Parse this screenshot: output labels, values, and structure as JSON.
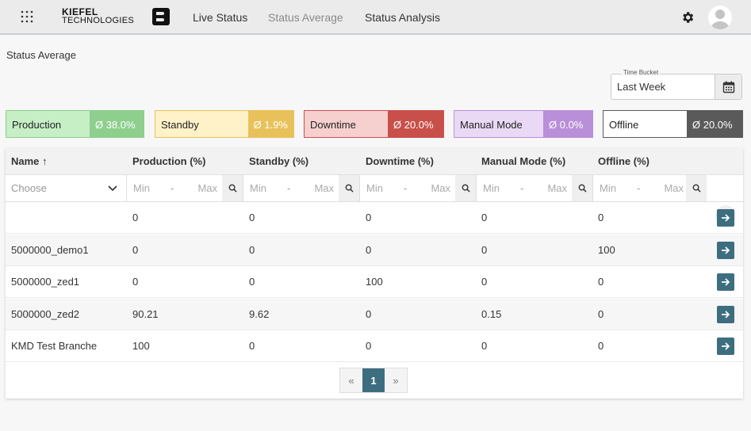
{
  "brand": {
    "line1": "KIEFEL",
    "line2": "TECHNOLOGIES"
  },
  "nav": {
    "live": "Live Status",
    "average": "Status Average",
    "analysis": "Status Analysis"
  },
  "page_title": "Status Average",
  "time_bucket": {
    "label": "Time Bucket",
    "value": "Last Week"
  },
  "cards": [
    {
      "label": "Production",
      "value": "Ø 38.0%",
      "bg": "#c6efc6",
      "border": "#8ecf8e",
      "val_bg": "#8ecf8e"
    },
    {
      "label": "Standby",
      "value": "Ø 1.9%",
      "bg": "#fff2c9",
      "border": "#e8c15a",
      "val_bg": "#e8c15a"
    },
    {
      "label": "Downtime",
      "value": "Ø 20.0%",
      "bg": "#f6d0cf",
      "border": "#c9504a",
      "val_bg": "#c9504a"
    },
    {
      "label": "Manual Mode",
      "value": "Ø 0.0%",
      "bg": "#ead9f5",
      "border": "#b98fd9",
      "val_bg": "#b98fd9"
    },
    {
      "label": "Offline",
      "value": "Ø 20.0%",
      "bg": "#ffffff",
      "border": "#5a5a5a",
      "val_bg": "#5a5a5a"
    }
  ],
  "table": {
    "headers": [
      "Name ↑",
      "Production (%)",
      "Standby (%)",
      "Downtime (%)",
      "Manual Mode (%)",
      "Offline (%)"
    ],
    "filter": {
      "choose": "Choose",
      "min": "Min",
      "dash": "-",
      "max": "Max"
    },
    "rows": [
      {
        "name": "",
        "production": "0",
        "standby": "0",
        "downtime": "0",
        "manual": "0",
        "offline": "0"
      },
      {
        "name": "5000000_demo1",
        "production": "0",
        "standby": "0",
        "downtime": "0",
        "manual": "0",
        "offline": "100"
      },
      {
        "name": "5000000_zed1",
        "production": "0",
        "standby": "0",
        "downtime": "100",
        "manual": "0",
        "offline": "0"
      },
      {
        "name": "5000000_zed2",
        "production": "90.21",
        "standby": "9.62",
        "downtime": "0",
        "manual": "0.15",
        "offline": "0"
      },
      {
        "name": "KMD Test Branche",
        "production": "100",
        "standby": "0",
        "downtime": "0",
        "manual": "0",
        "offline": "0"
      }
    ]
  },
  "pager": {
    "prev": "«",
    "current": "1",
    "next": "»"
  },
  "icons": {
    "apps": "grid-icon",
    "settings": "gear-icon",
    "user": "avatar",
    "calendar": "calendar-icon",
    "search": "search-icon",
    "clear": "close-icon",
    "go": "arrow-right-icon"
  }
}
